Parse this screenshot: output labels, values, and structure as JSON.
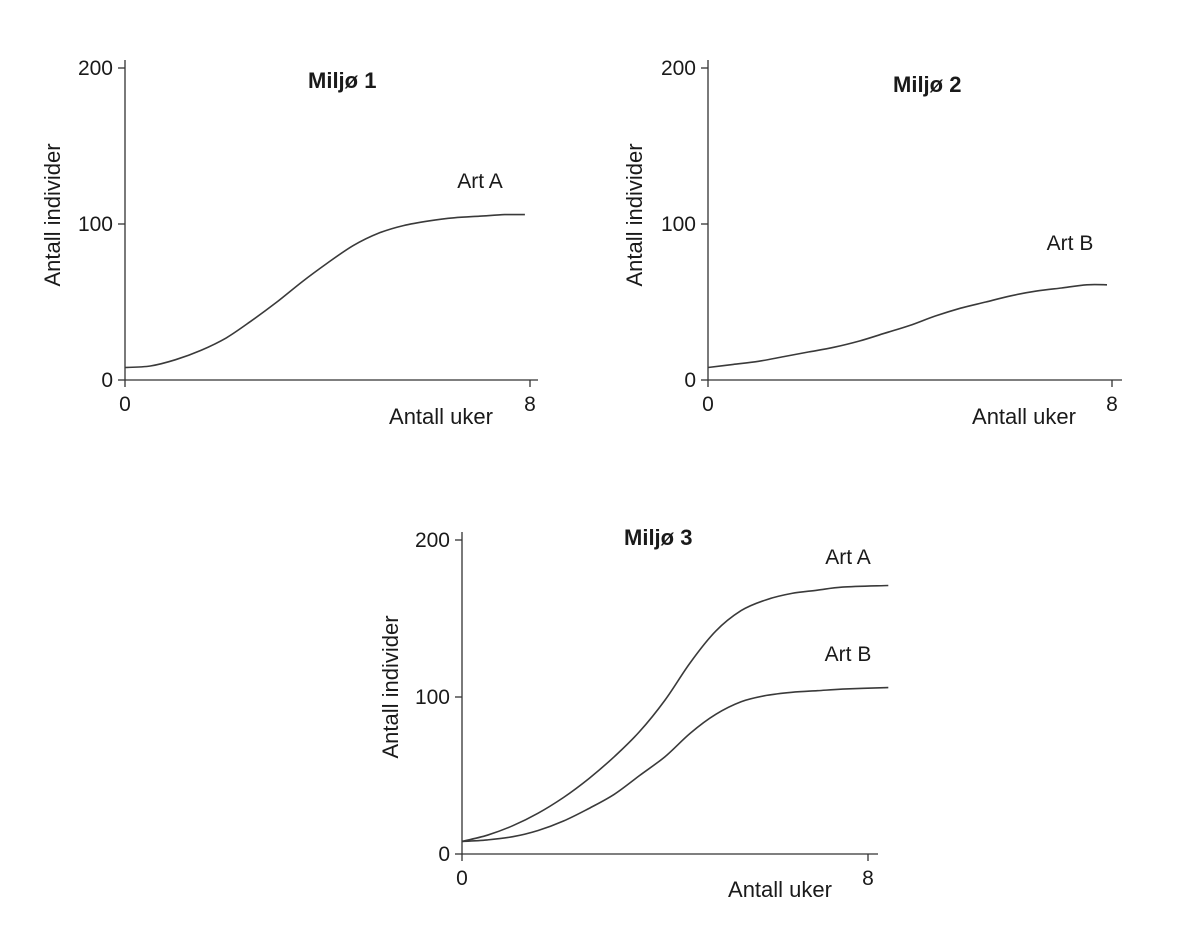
{
  "chart_data": [
    {
      "type": "line",
      "title": "Miljø 1",
      "xlabel": "Antall uker",
      "ylabel": "Antall individer",
      "xlim": [
        0,
        8
      ],
      "ylim": [
        0,
        200
      ],
      "x_ticks": [
        "0",
        "8"
      ],
      "y_ticks": [
        "0",
        "100",
        "200"
      ],
      "grid": false,
      "series": [
        {
          "name": "Art A",
          "x": [
            0,
            0.5,
            1,
            1.5,
            2,
            2.5,
            3,
            3.5,
            4,
            4.5,
            5,
            5.5,
            6,
            6.5,
            7,
            7.5,
            7.9
          ],
          "y": [
            8,
            9,
            13,
            19,
            27,
            38,
            50,
            63,
            75,
            86,
            94,
            99,
            102,
            104,
            105,
            106,
            106
          ]
        }
      ]
    },
    {
      "type": "line",
      "title": "Miljø 2",
      "xlabel": "Antall uker",
      "ylabel": "Antall individer",
      "xlim": [
        0,
        8
      ],
      "ylim": [
        0,
        200
      ],
      "x_ticks": [
        "0",
        "8"
      ],
      "y_ticks": [
        "0",
        "100",
        "200"
      ],
      "grid": false,
      "series": [
        {
          "name": "Art B",
          "x": [
            0,
            0.5,
            1,
            1.5,
            2,
            2.5,
            3,
            3.5,
            4,
            4.5,
            5,
            5.5,
            6,
            6.5,
            7,
            7.5,
            7.9
          ],
          "y": [
            8,
            10,
            12,
            15,
            18,
            21,
            25,
            30,
            35,
            41,
            46,
            50,
            54,
            57,
            59,
            61,
            61
          ]
        }
      ]
    },
    {
      "type": "line",
      "title": "Miljø 3",
      "xlabel": "Antall uker",
      "ylabel": "Antall individer",
      "xlim": [
        0,
        8
      ],
      "ylim": [
        0,
        200
      ],
      "x_ticks": [
        "0",
        "8"
      ],
      "y_ticks": [
        "0",
        "100",
        "200"
      ],
      "grid": false,
      "series": [
        {
          "name": "Art A",
          "x": [
            0,
            0.5,
            1,
            1.5,
            2,
            2.5,
            3,
            3.5,
            4,
            4.5,
            5,
            5.5,
            6,
            6.5,
            7,
            7.5,
            8.4
          ],
          "y": [
            8,
            12,
            18,
            26,
            36,
            48,
            62,
            78,
            98,
            122,
            142,
            155,
            162,
            166,
            168,
            170,
            171
          ]
        },
        {
          "name": "Art B",
          "x": [
            0,
            0.5,
            1,
            1.5,
            2,
            2.5,
            3,
            3.5,
            4,
            4.5,
            5,
            5.5,
            6,
            6.5,
            7,
            7.5,
            8.4
          ],
          "y": [
            8,
            9,
            11,
            15,
            21,
            29,
            38,
            50,
            62,
            77,
            89,
            97,
            101,
            103,
            104,
            105,
            106
          ]
        }
      ]
    }
  ]
}
